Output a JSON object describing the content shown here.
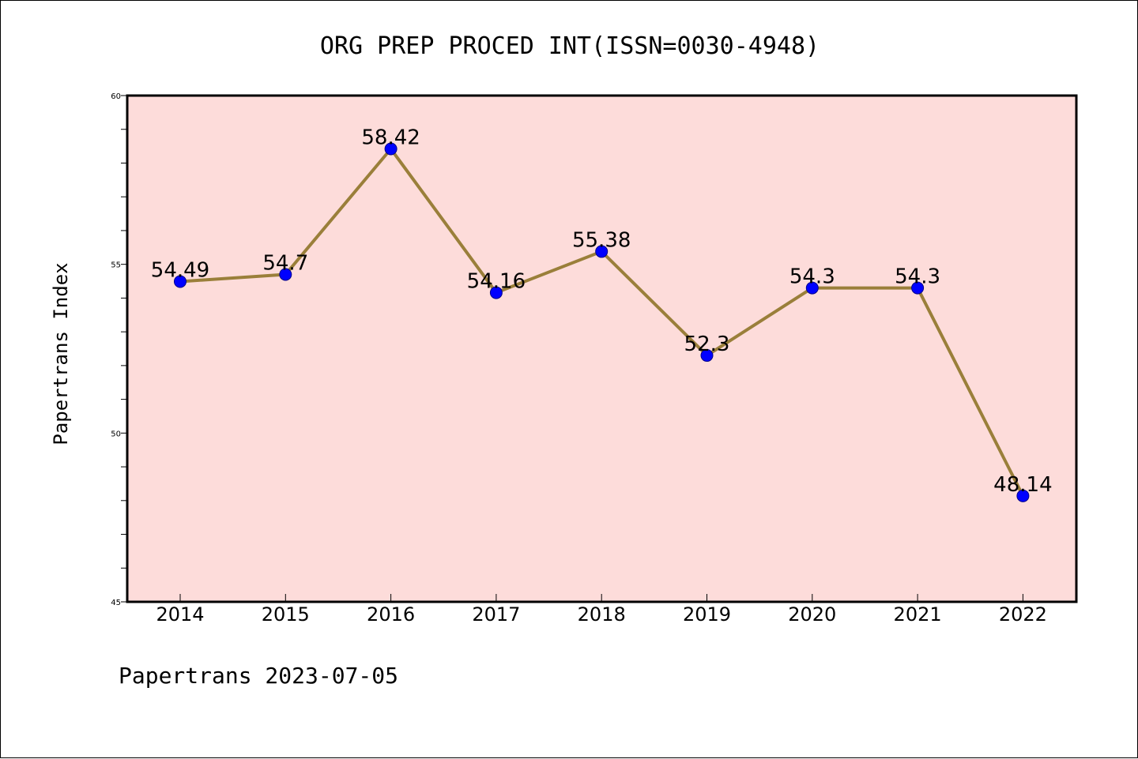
{
  "chart_data": {
    "type": "line",
    "title": "ORG PREP PROCED INT(ISSN=0030-4948)",
    "ylabel": "Papertrans Index",
    "xlabel": "",
    "footer": "Papertrans 2023-07-05",
    "categories": [
      "2014",
      "2015",
      "2016",
      "2017",
      "2018",
      "2019",
      "2020",
      "2021",
      "2022"
    ],
    "series": [
      {
        "values": [
          54.49,
          54.7,
          58.42,
          54.16,
          55.38,
          52.3,
          54.3,
          54.3,
          48.14
        ],
        "labels": [
          "54.49",
          "54.7",
          "58.42",
          "54.16",
          "55.38",
          "52.3",
          "54.3",
          "54.3",
          "48.14"
        ]
      }
    ],
    "ylim": [
      45,
      60
    ],
    "yticks": [
      "45",
      "50",
      "55",
      "60"
    ],
    "grid": false,
    "colors": {
      "line": "#9a7f3a",
      "marker": "#0000ff",
      "plot_bg": "#fddcda",
      "axis": "#000000"
    }
  }
}
